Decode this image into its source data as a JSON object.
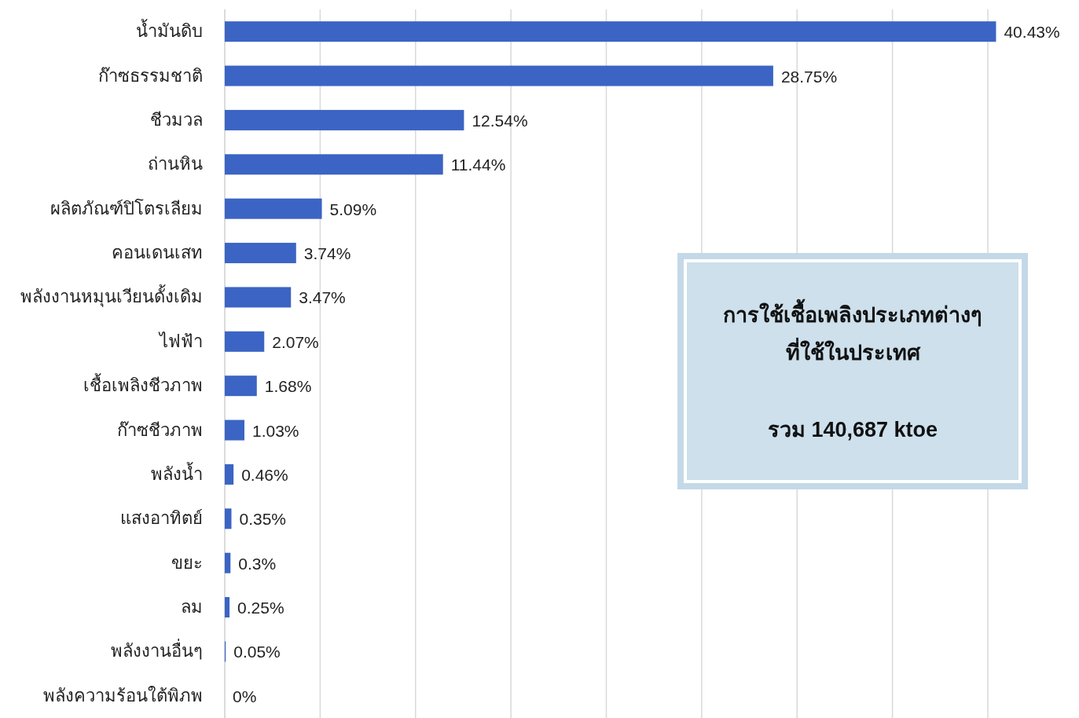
{
  "chart_data": {
    "type": "bar",
    "orientation": "horizontal",
    "categories": [
      "น้ำมันดิบ",
      "ก๊าซธรรมชาติ",
      "ชีวมวล",
      "ถ่านหิน",
      "ผลิตภัณฑ์ปิโตรเลียม",
      "คอนเดนเสท",
      "พลังงานหมุนเวียนดั้งเดิม",
      "ไฟฟ้า",
      "เชื้อเพลิงชีวภาพ",
      "ก๊าซชีวภาพ",
      "พลังน้ำ",
      "แสงอาทิตย์",
      "ขยะ",
      "ลม",
      "พลังงานอื่นๆ",
      "พลังความร้อนใต้พิภพ"
    ],
    "values": [
      40.43,
      28.75,
      12.54,
      11.44,
      5.09,
      3.74,
      3.47,
      2.07,
      1.68,
      1.03,
      0.46,
      0.35,
      0.3,
      0.25,
      0.05,
      0
    ],
    "value_labels": [
      "40.43%",
      "28.75%",
      "12.54%",
      "11.44%",
      "5.09%",
      "3.74%",
      "3.47%",
      "2.07%",
      "1.68%",
      "1.03%",
      "0.46%",
      "0.35%",
      "0.3%",
      "0.25%",
      "0.05%",
      "0%"
    ],
    "color": "#3b64c4",
    "xticks": [
      {
        "value": 0,
        "label": null
      },
      {
        "value": 5,
        "label": null
      },
      {
        "value": 10,
        "label": null
      },
      {
        "value": 15,
        "label": null
      },
      {
        "value": 20,
        "label": null
      },
      {
        "value": 25,
        "label": null
      },
      {
        "value": 30,
        "label": null
      },
      {
        "value": 35,
        "label": null
      },
      {
        "value": 40,
        "label": null
      }
    ],
    "grid": "x",
    "tick_labels": "y",
    "annotations": [
      "การใช้เชื้อเพลิงประเภทต่างๆ",
      "ที่ใช้ในประเทศ",
      "รวม 140,687 ktoe"
    ]
  }
}
